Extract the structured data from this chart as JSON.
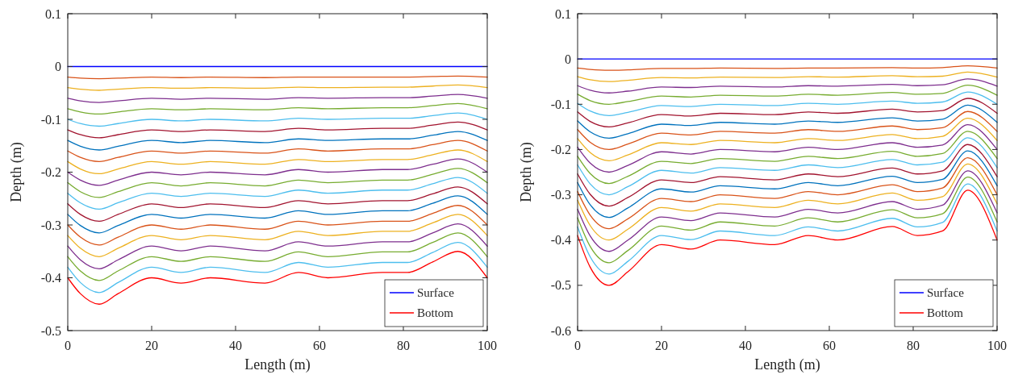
{
  "chart_data": [
    {
      "type": "line",
      "xlabel": "Length (m)",
      "ylabel": "Depth (m)",
      "xlim": [
        0,
        100
      ],
      "xticks": [
        0,
        20,
        40,
        60,
        80,
        100
      ],
      "ylim": [
        -0.5,
        0.1
      ],
      "yticks": [
        -0.5,
        -0.4,
        -0.3,
        -0.2,
        -0.1,
        0,
        0.1
      ],
      "legend": "bottom right",
      "x": [
        0,
        3,
        7.5,
        12,
        20,
        27,
        34,
        47,
        55,
        62,
        75,
        81,
        87,
        93,
        100
      ],
      "series": [
        {
          "name": "Surface",
          "color": "#0000ff",
          "values": [
            0,
            0,
            0,
            0,
            0,
            0,
            0,
            0,
            0,
            0,
            0,
            0,
            0,
            0,
            0
          ]
        },
        {
          "color": "#d95319",
          "values": [
            -0.02,
            -0.022,
            -0.023,
            -0.022,
            -0.02,
            -0.021,
            -0.02,
            -0.021,
            -0.02,
            -0.02,
            -0.02,
            -0.02,
            -0.019,
            -0.018,
            -0.02
          ]
        },
        {
          "color": "#edb120",
          "values": [
            -0.04,
            -0.043,
            -0.045,
            -0.043,
            -0.04,
            -0.041,
            -0.04,
            -0.041,
            -0.039,
            -0.04,
            -0.039,
            -0.039,
            -0.037,
            -0.035,
            -0.04
          ]
        },
        {
          "color": "#7e2f8e",
          "values": [
            -0.06,
            -0.065,
            -0.068,
            -0.065,
            -0.06,
            -0.062,
            -0.06,
            -0.062,
            -0.059,
            -0.06,
            -0.059,
            -0.059,
            -0.056,
            -0.053,
            -0.06
          ]
        },
        {
          "color": "#77ac30",
          "values": [
            -0.08,
            -0.086,
            -0.09,
            -0.086,
            -0.08,
            -0.082,
            -0.08,
            -0.082,
            -0.078,
            -0.08,
            -0.078,
            -0.078,
            -0.074,
            -0.07,
            -0.08
          ]
        },
        {
          "color": "#4dbeee",
          "values": [
            -0.1,
            -0.108,
            -0.113,
            -0.108,
            -0.1,
            -0.103,
            -0.1,
            -0.103,
            -0.098,
            -0.1,
            -0.098,
            -0.098,
            -0.093,
            -0.088,
            -0.1
          ]
        },
        {
          "color": "#a2142f",
          "values": [
            -0.12,
            -0.129,
            -0.135,
            -0.129,
            -0.12,
            -0.123,
            -0.12,
            -0.123,
            -0.117,
            -0.12,
            -0.117,
            -0.117,
            -0.111,
            -0.105,
            -0.12
          ]
        },
        {
          "color": "#0072bd",
          "values": [
            -0.14,
            -0.151,
            -0.158,
            -0.151,
            -0.14,
            -0.144,
            -0.14,
            -0.144,
            -0.137,
            -0.14,
            -0.137,
            -0.137,
            -0.13,
            -0.123,
            -0.14
          ]
        },
        {
          "color": "#d95319",
          "values": [
            -0.16,
            -0.172,
            -0.18,
            -0.172,
            -0.16,
            -0.164,
            -0.16,
            -0.164,
            -0.156,
            -0.16,
            -0.156,
            -0.156,
            -0.148,
            -0.14,
            -0.16
          ]
        },
        {
          "color": "#edb120",
          "values": [
            -0.18,
            -0.194,
            -0.203,
            -0.194,
            -0.18,
            -0.185,
            -0.18,
            -0.185,
            -0.176,
            -0.18,
            -0.176,
            -0.176,
            -0.167,
            -0.158,
            -0.18
          ]
        },
        {
          "color": "#7e2f8e",
          "values": [
            -0.2,
            -0.215,
            -0.225,
            -0.215,
            -0.2,
            -0.205,
            -0.2,
            -0.205,
            -0.195,
            -0.2,
            -0.195,
            -0.195,
            -0.185,
            -0.175,
            -0.2
          ]
        },
        {
          "color": "#77ac30",
          "values": [
            -0.22,
            -0.237,
            -0.248,
            -0.237,
            -0.22,
            -0.226,
            -0.22,
            -0.226,
            -0.215,
            -0.22,
            -0.215,
            -0.215,
            -0.204,
            -0.193,
            -0.22
          ]
        },
        {
          "color": "#4dbeee",
          "values": [
            -0.24,
            -0.258,
            -0.27,
            -0.258,
            -0.24,
            -0.246,
            -0.24,
            -0.246,
            -0.234,
            -0.24,
            -0.234,
            -0.234,
            -0.222,
            -0.21,
            -0.24
          ]
        },
        {
          "color": "#a2142f",
          "values": [
            -0.26,
            -0.28,
            -0.293,
            -0.28,
            -0.26,
            -0.267,
            -0.26,
            -0.267,
            -0.254,
            -0.26,
            -0.254,
            -0.254,
            -0.241,
            -0.228,
            -0.26
          ]
        },
        {
          "color": "#0072bd",
          "values": [
            -0.28,
            -0.301,
            -0.315,
            -0.301,
            -0.28,
            -0.287,
            -0.28,
            -0.287,
            -0.273,
            -0.28,
            -0.273,
            -0.273,
            -0.259,
            -0.245,
            -0.28
          ]
        },
        {
          "color": "#d95319",
          "values": [
            -0.3,
            -0.323,
            -0.338,
            -0.323,
            -0.3,
            -0.308,
            -0.3,
            -0.308,
            -0.293,
            -0.3,
            -0.293,
            -0.293,
            -0.278,
            -0.263,
            -0.3
          ]
        },
        {
          "color": "#edb120",
          "values": [
            -0.32,
            -0.344,
            -0.36,
            -0.344,
            -0.32,
            -0.328,
            -0.32,
            -0.328,
            -0.312,
            -0.32,
            -0.312,
            -0.312,
            -0.296,
            -0.28,
            -0.32
          ]
        },
        {
          "color": "#7e2f8e",
          "values": [
            -0.34,
            -0.366,
            -0.383,
            -0.366,
            -0.34,
            -0.349,
            -0.34,
            -0.349,
            -0.332,
            -0.34,
            -0.332,
            -0.332,
            -0.315,
            -0.298,
            -0.34
          ]
        },
        {
          "color": "#77ac30",
          "values": [
            -0.36,
            -0.387,
            -0.405,
            -0.387,
            -0.36,
            -0.369,
            -0.36,
            -0.369,
            -0.351,
            -0.36,
            -0.351,
            -0.351,
            -0.333,
            -0.315,
            -0.36
          ]
        },
        {
          "color": "#4dbeee",
          "values": [
            -0.38,
            -0.409,
            -0.428,
            -0.409,
            -0.38,
            -0.39,
            -0.38,
            -0.39,
            -0.371,
            -0.38,
            -0.371,
            -0.371,
            -0.352,
            -0.333,
            -0.38
          ]
        },
        {
          "name": "Bottom",
          "color": "#ff0000",
          "values": [
            -0.4,
            -0.43,
            -0.45,
            -0.43,
            -0.4,
            -0.41,
            -0.4,
            -0.41,
            -0.39,
            -0.4,
            -0.39,
            -0.39,
            -0.37,
            -0.35,
            -0.4
          ]
        }
      ]
    },
    {
      "type": "line",
      "xlabel": "Length (m)",
      "ylabel": "Depth (m)",
      "xlim": [
        0,
        100
      ],
      "xticks": [
        0,
        20,
        40,
        60,
        80,
        100
      ],
      "ylim": [
        -0.6,
        0.1
      ],
      "yticks": [
        -0.6,
        -0.5,
        -0.4,
        -0.3,
        -0.2,
        -0.1,
        0,
        0.1
      ],
      "legend": "bottom right",
      "x": [
        0,
        3,
        7.5,
        12,
        20,
        27,
        34,
        47,
        55,
        62,
        75,
        81,
        87,
        93,
        100
      ],
      "series": [
        {
          "name": "Surface",
          "color": "#0000ff",
          "values": [
            0,
            0,
            0,
            0,
            0,
            0,
            0,
            0,
            0,
            0,
            0,
            0,
            0,
            0,
            0
          ]
        },
        {
          "color": "#d95319",
          "values": [
            -0.02,
            -0.023,
            -0.025,
            -0.024,
            -0.021,
            -0.021,
            -0.02,
            -0.021,
            -0.02,
            -0.02,
            -0.019,
            -0.02,
            -0.019,
            -0.015,
            -0.02
          ]
        },
        {
          "color": "#edb120",
          "values": [
            -0.039,
            -0.046,
            -0.05,
            -0.047,
            -0.041,
            -0.042,
            -0.04,
            -0.041,
            -0.039,
            -0.04,
            -0.037,
            -0.039,
            -0.038,
            -0.029,
            -0.04
          ]
        },
        {
          "color": "#7e2f8e",
          "values": [
            -0.059,
            -0.069,
            -0.075,
            -0.071,
            -0.062,
            -0.063,
            -0.06,
            -0.062,
            -0.059,
            -0.06,
            -0.056,
            -0.059,
            -0.057,
            -0.044,
            -0.06
          ]
        },
        {
          "color": "#77ac30",
          "values": [
            -0.078,
            -0.092,
            -0.1,
            -0.094,
            -0.082,
            -0.084,
            -0.08,
            -0.082,
            -0.078,
            -0.08,
            -0.074,
            -0.078,
            -0.076,
            -0.058,
            -0.08
          ]
        },
        {
          "color": "#4dbeee",
          "values": [
            -0.098,
            -0.115,
            -0.125,
            -0.118,
            -0.103,
            -0.105,
            -0.1,
            -0.103,
            -0.098,
            -0.1,
            -0.093,
            -0.098,
            -0.095,
            -0.073,
            -0.1
          ]
        },
        {
          "color": "#a2142f",
          "values": [
            -0.117,
            -0.138,
            -0.15,
            -0.141,
            -0.123,
            -0.126,
            -0.12,
            -0.123,
            -0.117,
            -0.12,
            -0.111,
            -0.117,
            -0.114,
            -0.087,
            -0.12
          ]
        },
        {
          "color": "#0072bd",
          "values": [
            -0.137,
            -0.161,
            -0.175,
            -0.165,
            -0.144,
            -0.147,
            -0.14,
            -0.144,
            -0.137,
            -0.14,
            -0.13,
            -0.137,
            -0.133,
            -0.102,
            -0.14
          ]
        },
        {
          "color": "#d95319",
          "values": [
            -0.156,
            -0.184,
            -0.2,
            -0.188,
            -0.164,
            -0.168,
            -0.16,
            -0.164,
            -0.156,
            -0.16,
            -0.148,
            -0.156,
            -0.152,
            -0.116,
            -0.16
          ]
        },
        {
          "color": "#edb120",
          "values": [
            -0.176,
            -0.207,
            -0.225,
            -0.212,
            -0.185,
            -0.189,
            -0.18,
            -0.185,
            -0.176,
            -0.18,
            -0.167,
            -0.176,
            -0.171,
            -0.131,
            -0.18
          ]
        },
        {
          "color": "#7e2f8e",
          "values": [
            -0.195,
            -0.23,
            -0.25,
            -0.235,
            -0.205,
            -0.21,
            -0.2,
            -0.205,
            -0.195,
            -0.2,
            -0.185,
            -0.195,
            -0.19,
            -0.145,
            -0.2
          ]
        },
        {
          "color": "#77ac30",
          "values": [
            -0.215,
            -0.253,
            -0.275,
            -0.259,
            -0.226,
            -0.231,
            -0.22,
            -0.226,
            -0.215,
            -0.22,
            -0.204,
            -0.215,
            -0.209,
            -0.16,
            -0.22
          ]
        },
        {
          "color": "#4dbeee",
          "values": [
            -0.234,
            -0.276,
            -0.3,
            -0.282,
            -0.246,
            -0.252,
            -0.24,
            -0.246,
            -0.234,
            -0.24,
            -0.222,
            -0.234,
            -0.228,
            -0.174,
            -0.24
          ]
        },
        {
          "color": "#a2142f",
          "values": [
            -0.254,
            -0.299,
            -0.325,
            -0.306,
            -0.267,
            -0.273,
            -0.26,
            -0.267,
            -0.254,
            -0.26,
            -0.241,
            -0.254,
            -0.247,
            -0.189,
            -0.26
          ]
        },
        {
          "color": "#0072bd",
          "values": [
            -0.273,
            -0.322,
            -0.35,
            -0.329,
            -0.287,
            -0.294,
            -0.28,
            -0.287,
            -0.273,
            -0.28,
            -0.259,
            -0.273,
            -0.266,
            -0.203,
            -0.28
          ]
        },
        {
          "color": "#d95319",
          "values": [
            -0.293,
            -0.345,
            -0.375,
            -0.353,
            -0.308,
            -0.315,
            -0.3,
            -0.308,
            -0.293,
            -0.3,
            -0.278,
            -0.293,
            -0.285,
            -0.218,
            -0.3
          ]
        },
        {
          "color": "#edb120",
          "values": [
            -0.312,
            -0.368,
            -0.4,
            -0.376,
            -0.328,
            -0.336,
            -0.32,
            -0.328,
            -0.312,
            -0.32,
            -0.296,
            -0.312,
            -0.304,
            -0.232,
            -0.32
          ]
        },
        {
          "color": "#7e2f8e",
          "values": [
            -0.332,
            -0.391,
            -0.425,
            -0.4,
            -0.349,
            -0.357,
            -0.34,
            -0.349,
            -0.332,
            -0.34,
            -0.315,
            -0.332,
            -0.323,
            -0.247,
            -0.34
          ]
        },
        {
          "color": "#77ac30",
          "values": [
            -0.351,
            -0.414,
            -0.45,
            -0.423,
            -0.369,
            -0.378,
            -0.36,
            -0.369,
            -0.351,
            -0.36,
            -0.333,
            -0.351,
            -0.342,
            -0.261,
            -0.36
          ]
        },
        {
          "color": "#4dbeee",
          "values": [
            -0.371,
            -0.437,
            -0.475,
            -0.447,
            -0.39,
            -0.399,
            -0.38,
            -0.39,
            -0.371,
            -0.38,
            -0.352,
            -0.371,
            -0.361,
            -0.276,
            -0.38
          ]
        },
        {
          "name": "Bottom",
          "color": "#ff0000",
          "values": [
            -0.39,
            -0.46,
            -0.5,
            -0.47,
            -0.41,
            -0.42,
            -0.4,
            -0.41,
            -0.39,
            -0.4,
            -0.37,
            -0.39,
            -0.38,
            -0.29,
            -0.4
          ]
        }
      ]
    }
  ]
}
